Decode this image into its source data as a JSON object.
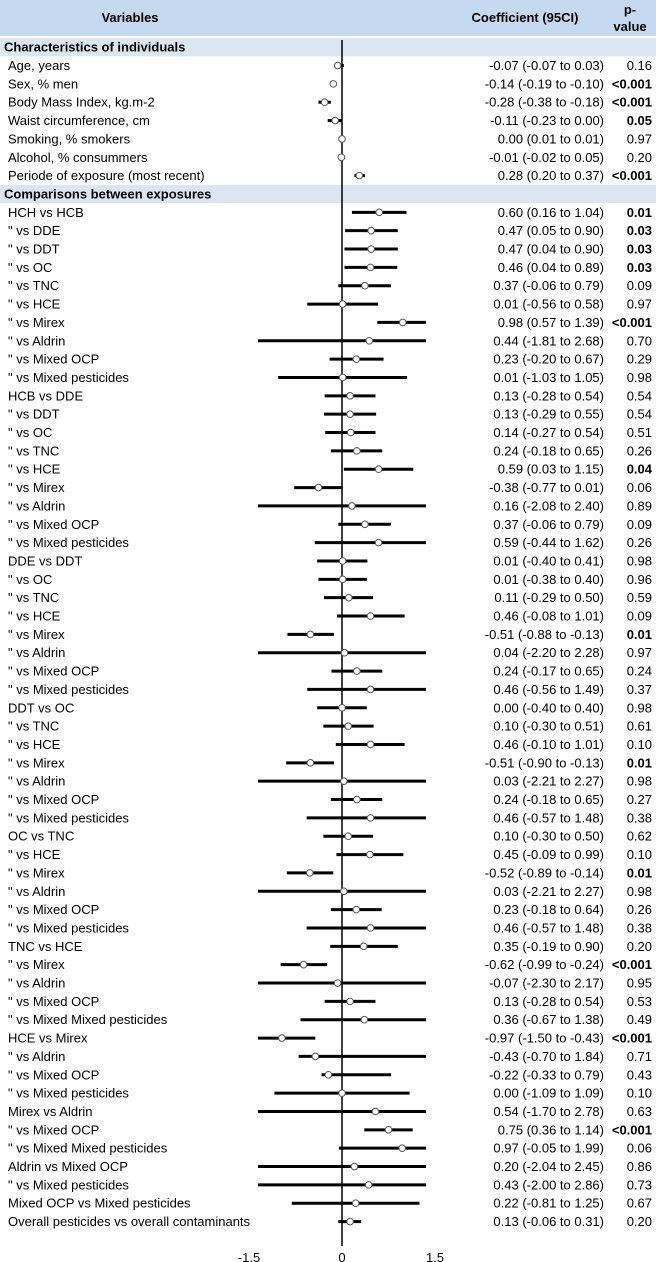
{
  "header": {
    "variables": "Variables",
    "coefficient": "Coefficient (95CI)",
    "pvalue_line1": "p-",
    "pvalue_line2": "value"
  },
  "colors": {
    "header_bg": "#c5d9f1",
    "section_bg": "#dce6f1",
    "text": "#000000"
  },
  "chart_data": {
    "type": "forest",
    "xlim": [
      -1.5,
      1.5
    ],
    "xticks": [
      "-1.5",
      "0",
      "1.5"
    ],
    "rows": [
      {
        "kind": "section",
        "label": "Characteristics of individuals"
      },
      {
        "kind": "data",
        "label": "Age, years",
        "coef": -0.07,
        "lo": -0.07,
        "hi": 0.03,
        "ci": "-0.07 (-0.07 to 0.03)",
        "p": "0.16",
        "bold": false
      },
      {
        "kind": "data",
        "label": "Sex, % men",
        "coef": -0.14,
        "lo": -0.19,
        "hi": -0.1,
        "ci": "-0.14 (-0.19 to -0.10)",
        "p": "<0.001",
        "bold": true
      },
      {
        "kind": "data",
        "label": "Body Mass Index, kg.m-2",
        "coef": -0.28,
        "lo": -0.38,
        "hi": -0.18,
        "ci": "-0.28 (-0.38 to -0.18)",
        "p": "<0.001",
        "bold": true
      },
      {
        "kind": "data",
        "label": "Waist circumference, cm",
        "coef": -0.11,
        "lo": -0.23,
        "hi": 0.0,
        "ci": "-0.11 (-0.23 to 0.00)",
        "p": "0.05",
        "bold": true
      },
      {
        "kind": "data",
        "label": "Smoking, % smokers",
        "coef": 0.0,
        "lo": 0.01,
        "hi": 0.01,
        "ci": "0.00 (0.01 to 0.01)",
        "p": "0.97",
        "bold": false
      },
      {
        "kind": "data",
        "label": "Alcohol, % consummers",
        "coef": -0.01,
        "lo": -0.02,
        "hi": 0.05,
        "ci": "-0.01 (-0.02 to 0.05)",
        "p": "0.20",
        "bold": false
      },
      {
        "kind": "data",
        "label": "Periode of exposure (most recent)",
        "coef": 0.28,
        "lo": 0.2,
        "hi": 0.37,
        "ci": "0.28 (0.20 to 0.37)",
        "p": "<0.001",
        "bold": true
      },
      {
        "kind": "section",
        "label": "Comparisons between exposures"
      },
      {
        "kind": "data",
        "label": "HCH vs HCB",
        "coef": 0.6,
        "lo": 0.16,
        "hi": 1.04,
        "ci": "0.60 (0.16 to 1.04)",
        "p": "0.01",
        "bold": true
      },
      {
        "kind": "data",
        "label": "\"     vs DDE",
        "coef": 0.47,
        "lo": 0.05,
        "hi": 0.9,
        "ci": "0.47 (0.05 to 0.90)",
        "p": "0.03",
        "bold": true
      },
      {
        "kind": "data",
        "label": "\"     vs DDT",
        "coef": 0.47,
        "lo": 0.04,
        "hi": 0.9,
        "ci": "0.47 (0.04 to 0.90)",
        "p": "0.03",
        "bold": true
      },
      {
        "kind": "data",
        "label": "\"     vs OC",
        "coef": 0.46,
        "lo": 0.04,
        "hi": 0.89,
        "ci": "0.46 (0.04 to 0.89)",
        "p": "0.03",
        "bold": true
      },
      {
        "kind": "data",
        "label": "\"     vs TNC",
        "coef": 0.37,
        "lo": -0.06,
        "hi": 0.79,
        "ci": "0.37 (-0.06 to 0.79)",
        "p": "0.09",
        "bold": false
      },
      {
        "kind": "data",
        "label": "\"     vs HCE",
        "coef": 0.01,
        "lo": -0.56,
        "hi": 0.58,
        "ci": "0.01 (-0.56 to 0.58)",
        "p": "0.97",
        "bold": false
      },
      {
        "kind": "data",
        "label": "\"     vs Mirex",
        "coef": 0.98,
        "lo": 0.57,
        "hi": 1.39,
        "ci": "0.98 (0.57 to 1.39)",
        "p": "<0.001",
        "bold": true
      },
      {
        "kind": "data",
        "label": "\"     vs Aldrin",
        "coef": 0.44,
        "lo": -1.81,
        "hi": 2.68,
        "ci": "0.44 (-1.81 to 2.68)",
        "p": "0.70",
        "bold": false
      },
      {
        "kind": "data",
        "label": "\"     vs Mixed OCP",
        "coef": 0.23,
        "lo": -0.2,
        "hi": 0.67,
        "ci": "0.23 (-0.20 to 0.67)",
        "p": "0.29",
        "bold": false
      },
      {
        "kind": "data",
        "label": "\"     vs Mixed pesticides",
        "coef": 0.01,
        "lo": -1.03,
        "hi": 1.05,
        "ci": "0.01 (-1.03 to 1.05)",
        "p": "0.98",
        "bold": false
      },
      {
        "kind": "data",
        "label": "HCB vs DDE",
        "coef": 0.13,
        "lo": -0.28,
        "hi": 0.54,
        "ci": "0.13 (-0.28 to 0.54)",
        "p": "0.54",
        "bold": false
      },
      {
        "kind": "data",
        "label": "\"     vs DDT",
        "coef": 0.13,
        "lo": -0.29,
        "hi": 0.55,
        "ci": "0.13 (-0.29 to 0.55)",
        "p": "0.54",
        "bold": false
      },
      {
        "kind": "data",
        "label": "\"     vs OC",
        "coef": 0.14,
        "lo": -0.27,
        "hi": 0.54,
        "ci": "0.14 (-0.27 to 0.54)",
        "p": "0.51",
        "bold": false
      },
      {
        "kind": "data",
        "label": "\"     vs TNC",
        "coef": 0.24,
        "lo": -0.18,
        "hi": 0.65,
        "ci": "0.24 (-0.18 to 0.65)",
        "p": "0.26",
        "bold": false
      },
      {
        "kind": "data",
        "label": "\"     vs HCE",
        "coef": 0.59,
        "lo": 0.03,
        "hi": 1.15,
        "ci": "0.59 (0.03 to 1.15)",
        "p": "0.04",
        "bold": true
      },
      {
        "kind": "data",
        "label": "\"     vs Mirex",
        "coef": -0.38,
        "lo": -0.77,
        "hi": 0.01,
        "ci": "-0.38 (-0.77 to 0.01)",
        "p": "0.06",
        "bold": false
      },
      {
        "kind": "data",
        "label": "\"     vs Aldrin",
        "coef": 0.16,
        "lo": -2.08,
        "hi": 2.4,
        "ci": "0.16 (-2.08 to 2.40)",
        "p": "0.89",
        "bold": false
      },
      {
        "kind": "data",
        "label": "\"     vs Mixed OCP",
        "coef": 0.37,
        "lo": -0.06,
        "hi": 0.79,
        "ci": "0.37 (-0.06 to 0.79)",
        "p": "0.09",
        "bold": false
      },
      {
        "kind": "data",
        "label": "\"     vs Mixed pesticides",
        "coef": 0.59,
        "lo": -0.44,
        "hi": 1.62,
        "ci": "0.59 (-0.44 to 1.62)",
        "p": "0.26",
        "bold": false
      },
      {
        "kind": "data",
        "label": "DDE vs DDT",
        "coef": 0.01,
        "lo": -0.4,
        "hi": 0.41,
        "ci": "0.01 (-0.40 to 0.41)",
        "p": "0.98",
        "bold": false
      },
      {
        "kind": "data",
        "label": "\"     vs OC",
        "coef": 0.01,
        "lo": -0.38,
        "hi": 0.4,
        "ci": "0.01 (-0.38 to 0.40)",
        "p": "0.96",
        "bold": false
      },
      {
        "kind": "data",
        "label": "\"     vs TNC",
        "coef": 0.11,
        "lo": -0.29,
        "hi": 0.5,
        "ci": "0.11 (-0.29 to 0.50)",
        "p": "0.59",
        "bold": false
      },
      {
        "kind": "data",
        "label": "\"     vs HCE",
        "coef": 0.46,
        "lo": -0.08,
        "hi": 1.01,
        "ci": "0.46 (-0.08 to 1.01)",
        "p": "0.09",
        "bold": false
      },
      {
        "kind": "data",
        "label": "\"     vs Mirex",
        "coef": -0.51,
        "lo": -0.88,
        "hi": -0.13,
        "ci": "-0.51 (-0.88 to -0.13)",
        "p": "0.01",
        "bold": true
      },
      {
        "kind": "data",
        "label": "\"     vs Aldrin",
        "coef": 0.04,
        "lo": -2.2,
        "hi": 2.28,
        "ci": "0.04 (-2.20 to 2.28)",
        "p": "0.97",
        "bold": false
      },
      {
        "kind": "data",
        "label": "\"     vs Mixed OCP",
        "coef": 0.24,
        "lo": -0.17,
        "hi": 0.65,
        "ci": "0.24 (-0.17 to 0.65)",
        "p": "0.24",
        "bold": false
      },
      {
        "kind": "data",
        "label": "\"     vs Mixed pesticides",
        "coef": 0.46,
        "lo": -0.56,
        "hi": 1.49,
        "ci": "0.46 (-0.56 to 1.49)",
        "p": "0.37",
        "bold": false
      },
      {
        "kind": "data",
        "label": "DDT vs OC",
        "coef": 0.0,
        "lo": -0.4,
        "hi": 0.4,
        "ci": "0.00 (-0.40 to 0.40)",
        "p": "0.98",
        "bold": false
      },
      {
        "kind": "data",
        "label": "\"     vs TNC",
        "coef": 0.1,
        "lo": -0.3,
        "hi": 0.51,
        "ci": "0.10 (-0.30 to 0.51)",
        "p": "0.61",
        "bold": false
      },
      {
        "kind": "data",
        "label": "\"     vs HCE",
        "coef": 0.46,
        "lo": -0.1,
        "hi": 1.01,
        "ci": "0.46 (-0.10 to 1.01)",
        "p": "0.10",
        "bold": false
      },
      {
        "kind": "data",
        "label": "\"     vs Mirex",
        "coef": -0.51,
        "lo": -0.9,
        "hi": -0.13,
        "ci": "-0.51 (-0.90 to -0.13)",
        "p": "0.01",
        "bold": true
      },
      {
        "kind": "data",
        "label": "\"     vs Aldrin",
        "coef": 0.03,
        "lo": -2.21,
        "hi": 2.27,
        "ci": "0.03 (-2.21 to 2.27)",
        "p": "0.98",
        "bold": false
      },
      {
        "kind": "data",
        "label": "\"     vs Mixed OCP",
        "coef": 0.24,
        "lo": -0.18,
        "hi": 0.65,
        "ci": "0.24 (-0.18 to 0.65)",
        "p": "0.27",
        "bold": false
      },
      {
        "kind": "data",
        "label": "\"     vs Mixed pesticides",
        "coef": 0.46,
        "lo": -0.57,
        "hi": 1.48,
        "ci": "0.46 (-0.57 to 1.48)",
        "p": "0.38",
        "bold": false
      },
      {
        "kind": "data",
        "label": "OC  vs TNC",
        "coef": 0.1,
        "lo": -0.3,
        "hi": 0.5,
        "ci": "0.10 (-0.30 to 0.50)",
        "p": "0.62",
        "bold": false
      },
      {
        "kind": "data",
        "label": "\"     vs HCE",
        "coef": 0.45,
        "lo": -0.09,
        "hi": 0.99,
        "ci": "0.45 (-0.09 to 0.99)",
        "p": "0.10",
        "bold": false
      },
      {
        "kind": "data",
        "label": "\"     vs Mirex",
        "coef": -0.52,
        "lo": -0.89,
        "hi": -0.14,
        "ci": "-0.52 (-0.89 to -0.14)",
        "p": "0.01",
        "bold": true
      },
      {
        "kind": "data",
        "label": "\"     vs Aldrin",
        "coef": 0.03,
        "lo": -2.21,
        "hi": 2.27,
        "ci": "0.03 (-2.21 to 2.27)",
        "p": "0.98",
        "bold": false
      },
      {
        "kind": "data",
        "label": "\"     vs Mixed OCP",
        "coef": 0.23,
        "lo": -0.18,
        "hi": 0.64,
        "ci": "0.23 (-0.18 to 0.64)",
        "p": "0.26",
        "bold": false
      },
      {
        "kind": "data",
        "label": "\"     vs Mixed pesticides",
        "coef": 0.46,
        "lo": -0.57,
        "hi": 1.48,
        "ci": "0.46 (-0.57 to 1.48)",
        "p": "0.38",
        "bold": false
      },
      {
        "kind": "data",
        "label": "TNC vs HCE",
        "coef": 0.35,
        "lo": -0.19,
        "hi": 0.9,
        "ci": "0.35 (-0.19 to 0.90)",
        "p": "0.20",
        "bold": false
      },
      {
        "kind": "data",
        "label": "\"     vs Mirex",
        "coef": -0.62,
        "lo": -0.99,
        "hi": -0.24,
        "ci": "-0.62 (-0.99 to -0.24)",
        "p": "<0.001",
        "bold": true
      },
      {
        "kind": "data",
        "label": "\"     vs Aldrin",
        "coef": -0.07,
        "lo": -2.3,
        "hi": 2.17,
        "ci": "-0.07 (-2.30 to 2.17)",
        "p": "0.95",
        "bold": false
      },
      {
        "kind": "data",
        "label": "\"     vs Mixed OCP",
        "coef": 0.13,
        "lo": -0.28,
        "hi": 0.54,
        "ci": "0.13 (-0.28 to 0.54)",
        "p": "0.53",
        "bold": false
      },
      {
        "kind": "data",
        "label": "\"     vs Mixed Mixed pesticides",
        "coef": 0.36,
        "lo": -0.67,
        "hi": 1.38,
        "ci": "0.36 (-0.67 to 1.38)",
        "p": "0.49",
        "bold": false
      },
      {
        "kind": "data",
        "label": "HCE vs Mirex",
        "coef": -0.97,
        "lo": -1.5,
        "hi": -0.43,
        "ci": "-0.97 (-1.50 to -0.43)",
        "p": "<0.001",
        "bold": true
      },
      {
        "kind": "data",
        "label": "\"     vs Aldrin",
        "coef": -0.43,
        "lo": -0.7,
        "hi": 1.84,
        "ci": "-0.43 (-0.70 to 1.84)",
        "p": "0.71",
        "bold": false
      },
      {
        "kind": "data",
        "label": "\"     vs Mixed OCP",
        "coef": -0.22,
        "lo": -0.33,
        "hi": 0.79,
        "ci": "-0.22 (-0.33 to 0.79)",
        "p": "0.43",
        "bold": false
      },
      {
        "kind": "data",
        "label": "\"     vs Mixed pesticides",
        "coef": 0.0,
        "lo": -1.09,
        "hi": 1.09,
        "ci": "0.00 (-1.09 to 1.09)",
        "p": "0.10",
        "bold": false
      },
      {
        "kind": "data",
        "label": "Mirex vs Aldrin",
        "coef": 0.54,
        "lo": -1.7,
        "hi": 2.78,
        "ci": "0.54 (-1.70 to 2.78)",
        "p": "0.63",
        "bold": false
      },
      {
        "kind": "data",
        "label": "\"       vs Mixed OCP",
        "coef": 0.75,
        "lo": 0.36,
        "hi": 1.14,
        "ci": "0.75 (0.36 to 1.14)",
        "p": "<0.001",
        "bold": true
      },
      {
        "kind": "data",
        "label": "\"       vs Mixed Mixed pesticides",
        "coef": 0.97,
        "lo": -0.05,
        "hi": 1.99,
        "ci": "0.97 (-0.05 to 1.99)",
        "p": "0.06",
        "bold": false
      },
      {
        "kind": "data",
        "label": "Aldrin vs Mixed OCP",
        "coef": 0.2,
        "lo": -2.04,
        "hi": 2.45,
        "ci": "0.20 (-2.04 to 2.45)",
        "p": "0.86",
        "bold": false
      },
      {
        "kind": "data",
        "label": "\"       vs Mixed pesticides",
        "coef": 0.43,
        "lo": -2.0,
        "hi": 2.86,
        "ci": "0.43 (-2.00 to 2.86)",
        "p": "0.73",
        "bold": false
      },
      {
        "kind": "data",
        "label": "Mixed OCP vs Mixed pesticides",
        "coef": 0.22,
        "lo": -0.81,
        "hi": 1.25,
        "ci": "0.22 (-0.81 to 1.25)",
        "p": "0.67",
        "bold": false
      },
      {
        "kind": "data",
        "label": "Overall pesticides vs overall contaminants",
        "coef": 0.13,
        "lo": -0.06,
        "hi": 0.31,
        "ci": "0.13 (-0.06 to 0.31)",
        "p": "0.20",
        "bold": false
      }
    ]
  }
}
